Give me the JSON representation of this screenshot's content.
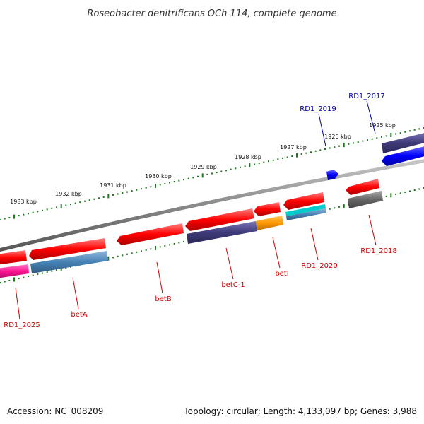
{
  "title": "Roseobacter denitrificans OCh 114, complete genome",
  "footer": {
    "accession": "Accession: NC_008209",
    "topology": "Topology: circular; Length: 4,133,097 bp; Genes: 3,988"
  },
  "kbp_ticks": [
    "1933 kbp",
    "1932 kbp",
    "1931 kbp",
    "1930 kbp",
    "1929 kbp",
    "1928 kbp",
    "1927 kbp",
    "1926 kbp",
    "1925 kbp"
  ],
  "genes": [
    {
      "name": "RD1_2025",
      "color": "#cc0000"
    },
    {
      "name": "betA",
      "color": "#cc0000"
    },
    {
      "name": "betB",
      "color": "#cc0000"
    },
    {
      "name": "betC-1",
      "color": "#cc0000"
    },
    {
      "name": "betI",
      "color": "#cc0000"
    },
    {
      "name": "RD1_2020",
      "color": "#cc0000"
    },
    {
      "name": "RD1_2018",
      "color": "#cc0000"
    },
    {
      "name": "RD1_2019",
      "color": "#0000aa"
    },
    {
      "name": "RD1_2017",
      "color": "#0000aa"
    }
  ],
  "colors": {
    "cds": "#ff0000",
    "backbone": "#888888",
    "tick": "#1a7a1a",
    "blue_feature": "#0000ff",
    "purple_feature": "#3f3b7a",
    "steel_feature": "#4682b4",
    "pink_feature": "#ff1493",
    "orange_feature": "#ff9900",
    "cyan_feature": "#00cccc",
    "gray_feature": "#666666"
  }
}
